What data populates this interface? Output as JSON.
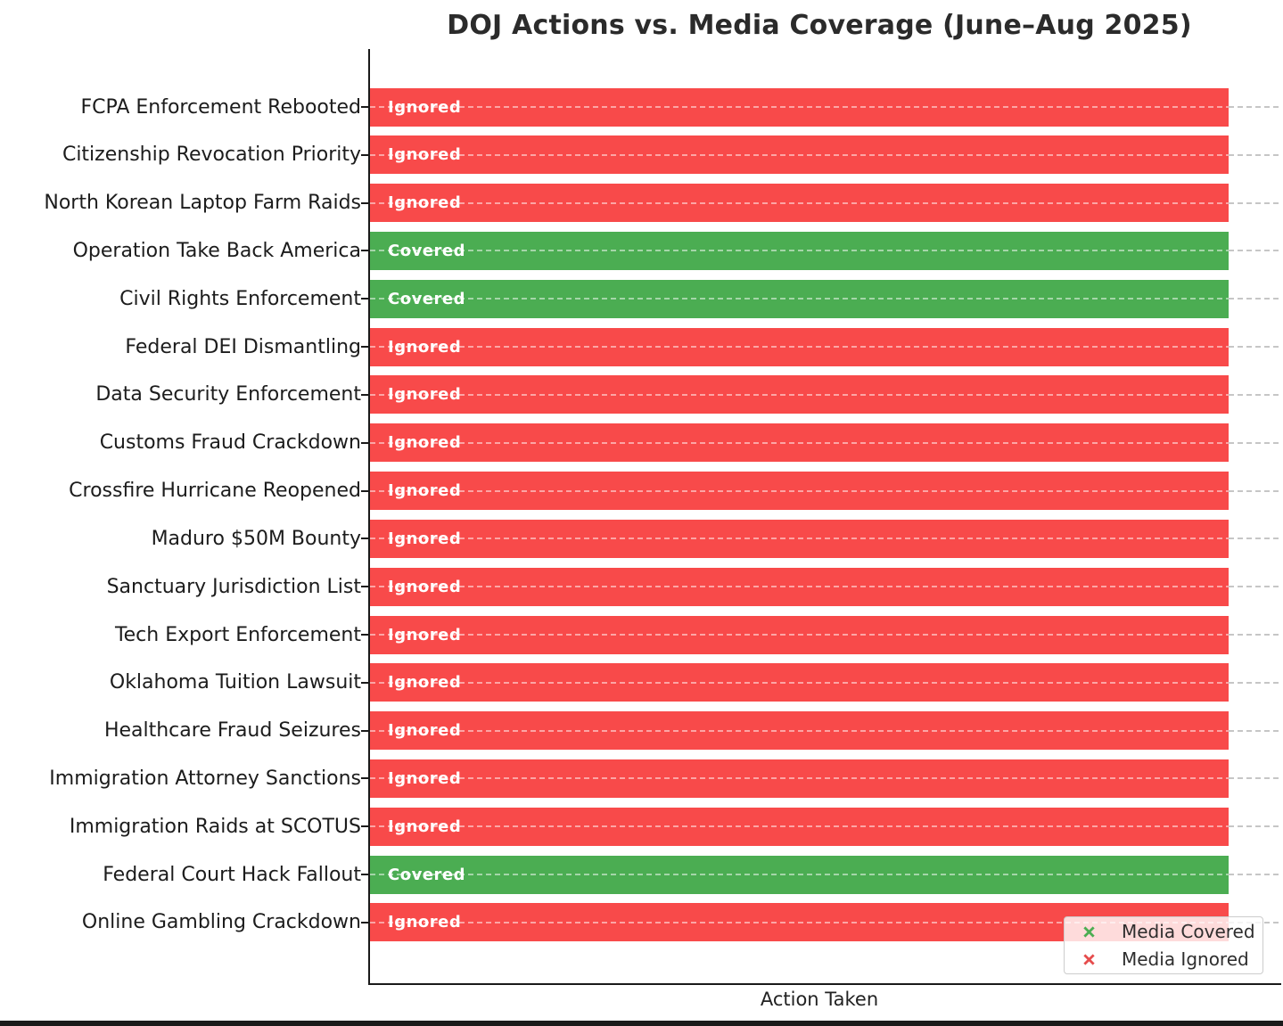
{
  "chart_data": {
    "type": "bar",
    "orientation": "horizontal",
    "title": "DOJ Actions vs. Media Coverage (June–Aug 2025)",
    "xlabel": "Action Taken",
    "ylabel": "",
    "categories": [
      "FCPA Enforcement Rebooted",
      "Citizenship Revocation Priority",
      "North Korean Laptop Farm Raids",
      "Operation Take Back America",
      "Civil Rights Enforcement",
      "Federal DEI Dismantling",
      "Data Security Enforcement",
      "Customs Fraud Crackdown",
      "Crossfire Hurricane Reopened",
      "Maduro $50M Bounty",
      "Sanctuary Jurisdiction List",
      "Tech Export Enforcement",
      "Oklahoma Tuition Lawsuit",
      "Healthcare Fraud Seizures",
      "Immigration Attorney Sanctions",
      "Immigration Raids at SCOTUS",
      "Federal Court Hack Fallout",
      "Online Gambling Crackdown"
    ],
    "values": [
      1,
      1,
      1,
      1,
      1,
      1,
      1,
      1,
      1,
      1,
      1,
      1,
      1,
      1,
      1,
      1,
      1,
      1
    ],
    "bar_statuses": [
      "Ignored",
      "Ignored",
      "Ignored",
      "Covered",
      "Covered",
      "Ignored",
      "Ignored",
      "Ignored",
      "Ignored",
      "Ignored",
      "Ignored",
      "Ignored",
      "Ignored",
      "Ignored",
      "Ignored",
      "Ignored",
      "Covered",
      "Ignored"
    ],
    "xlim": [
      0,
      1.06
    ],
    "grid": "dashed horizontal gridline at each category",
    "colors": {
      "covered": "#4BAD52",
      "ignored": "#F84A4A",
      "axis": "#1a1a1a",
      "gridline": "#c6c6c6"
    },
    "legend": {
      "position": "lower right",
      "entries": [
        {
          "label": "Media Covered",
          "marker": "x",
          "color": "#4BAD52"
        },
        {
          "label": "Media Ignored",
          "marker": "x",
          "color": "#E64C4C"
        }
      ]
    }
  }
}
